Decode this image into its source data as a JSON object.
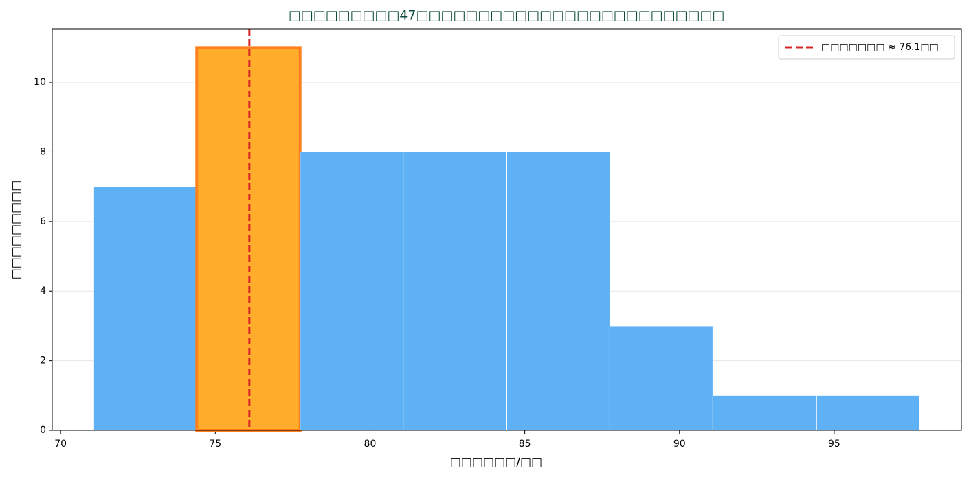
{
  "chart_data": {
    "type": "histogram",
    "title": "□□□□□□□□□47□□□□□□□□□□□□□□□□□□□□□□□□□",
    "x_label": "□□□□□□/□□",
    "y_label": "□□□□□□□□□",
    "bins": [
      71.07,
      74.4,
      77.74,
      81.07,
      84.42,
      87.75,
      91.08,
      94.43,
      97.76
    ],
    "values": [
      7,
      11,
      8,
      8,
      8,
      3,
      1,
      1
    ],
    "color": "#5eb1f4",
    "highlight_bin": 1,
    "highlight_color": "#ffad2b",
    "highlight_edge_color": "#ff7f1e",
    "mean_line": {
      "value": 76.1,
      "label": "□□□□□□□ ≈ 76.1□□",
      "color": "#d62728"
    },
    "xlim": [
      69.73,
      99.11
    ],
    "ylim": [
      0,
      11.54
    ],
    "xticks": [
      70,
      75,
      80,
      85,
      90,
      95
    ],
    "yticks": [
      0,
      2,
      4,
      6,
      8,
      10
    ],
    "grid": true,
    "legend": "upper right"
  }
}
